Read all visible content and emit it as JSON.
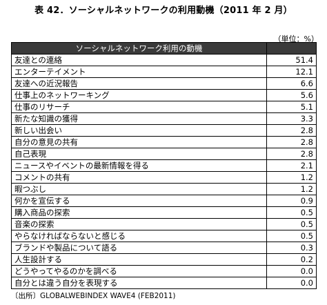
{
  "title": "表 42．ソーシャルネットワークの利用動機（2011 年 2 月）",
  "unit": "（単位：%）",
  "source": "〔出所〕GLOBALWEBINDEX WAVE4 (FEB2011)",
  "chart_data": {
    "type": "table",
    "column_headers": [
      "ソーシャルネットワーク利用の動機",
      ""
    ],
    "rows": [
      {
        "label": "友達との連絡",
        "value": "51.4"
      },
      {
        "label": "エンターテイメント",
        "value": "12.1"
      },
      {
        "label": "友達への近況報告",
        "value": "6.6"
      },
      {
        "label": "仕事上のネットワーキング",
        "value": "5.6"
      },
      {
        "label": "仕事のリサーチ",
        "value": "5.1"
      },
      {
        "label": "新たな知識の獲得",
        "value": "3.3"
      },
      {
        "label": "新しい出会い",
        "value": "2.8"
      },
      {
        "label": "自分の意見の共有",
        "value": "2.8"
      },
      {
        "label": "自己表現",
        "value": "2.8"
      },
      {
        "label": "ニュースやイベントの最新情報を得る",
        "value": "2.1"
      },
      {
        "label": "コメントの共有",
        "value": "1.2"
      },
      {
        "label": "暇つぶし",
        "value": "1.2"
      },
      {
        "label": "何かを宣伝する",
        "value": "0.9"
      },
      {
        "label": "購入商品の探索",
        "value": "0.5"
      },
      {
        "label": "音楽の探索",
        "value": "0.5"
      },
      {
        "label": "やらなければならないと感じる",
        "value": "0.5"
      },
      {
        "label": "ブランドや製品について語る",
        "value": "0.3"
      },
      {
        "label": "人生設計する",
        "value": "0.2"
      },
      {
        "label": "どうやってやるのかを調べる",
        "value": "0.0"
      },
      {
        "label": "自分とは違う自分を表現する",
        "value": "0.0"
      }
    ]
  }
}
